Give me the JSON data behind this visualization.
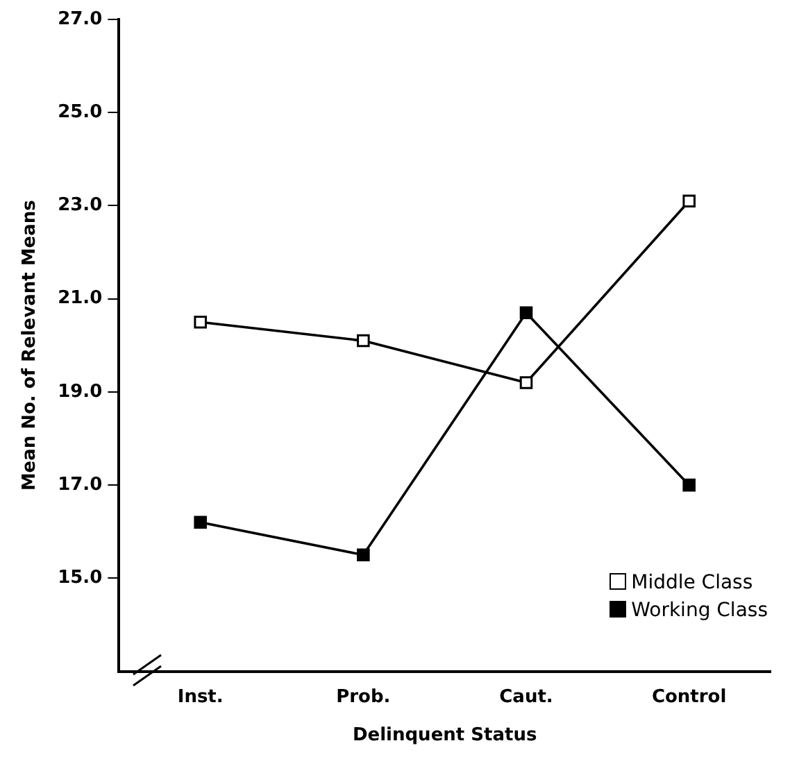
{
  "chart_data": {
    "type": "line",
    "xlabel": "Delinquent Status",
    "ylabel": "Mean No. of Relevant Means",
    "categories": [
      "Inst.",
      "Prob.",
      "Caut.",
      "Control"
    ],
    "series": [
      {
        "name": "Middle Class",
        "color": "#000000",
        "values": [
          20.5,
          20.1,
          19.2,
          23.1
        ]
      },
      {
        "name": "Working Class",
        "color": "#000000",
        "values": [
          16.2,
          15.5,
          20.7,
          17.0
        ]
      }
    ],
    "ylim": [
      13,
      27
    ],
    "yticks": [
      {
        "value": 15,
        "label": "15.0"
      },
      {
        "value": 17,
        "label": "17.0"
      },
      {
        "value": 19,
        "label": "19.0"
      },
      {
        "value": 21,
        "label": "21.0"
      },
      {
        "value": 23,
        "label": "23.0"
      },
      {
        "value": 25,
        "label": "25.0"
      },
      {
        "value": 27,
        "label": "27.0"
      }
    ],
    "grid": false,
    "legend": "bottom right",
    "marker": "square",
    "line_style": "solid"
  }
}
